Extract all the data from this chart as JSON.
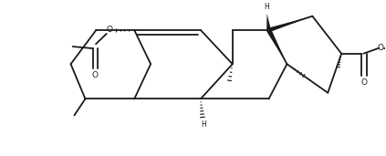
{
  "background_color": "#ffffff",
  "line_color": "#1a1a1a",
  "line_width": 1.3,
  "figsize": [
    4.23,
    1.71
  ],
  "dpi": 100,
  "xlim": [
    0.0,
    10.5
  ],
  "ylim": [
    0.0,
    4.0
  ]
}
